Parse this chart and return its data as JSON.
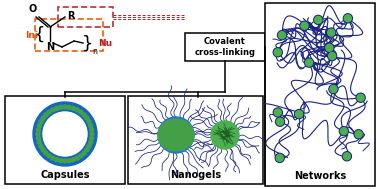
{
  "title": "Covalent\ncross-linking",
  "labels": [
    "Capsules",
    "Nanogels",
    "Networks"
  ],
  "bg_color": "#ffffff",
  "dark_blue": "#1a237e",
  "green_dark": "#1b5e20",
  "green_med": "#2e7d32",
  "green_bright": "#4caf50",
  "orange_dashed": "#e65100",
  "red_dashed": "#b71c1c",
  "text_color": "#000000"
}
